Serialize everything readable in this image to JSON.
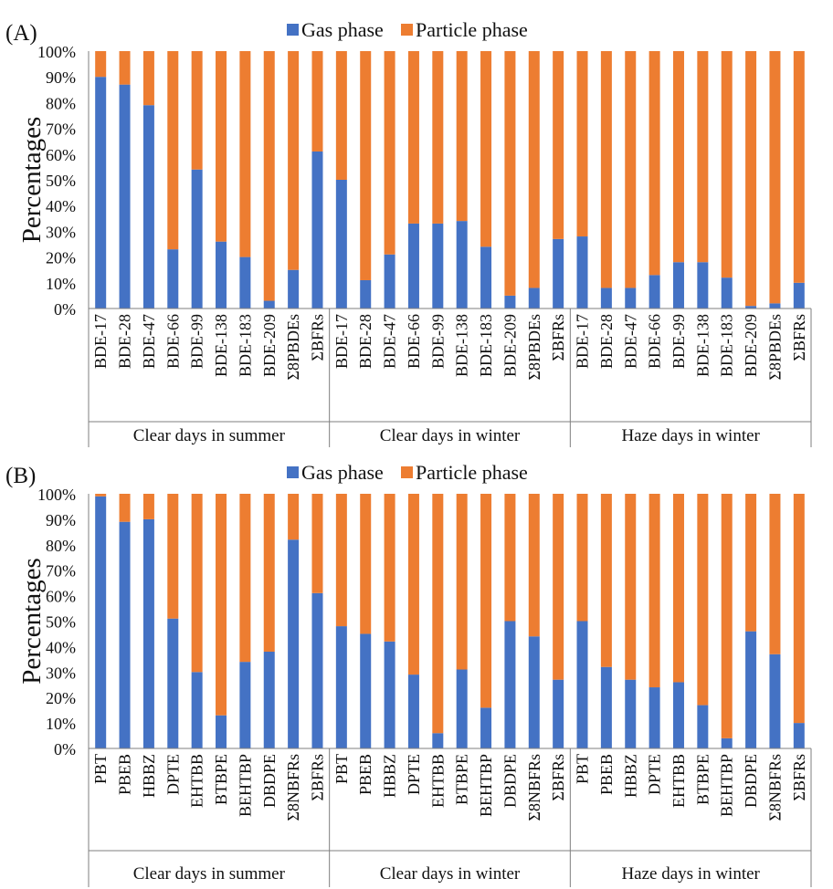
{
  "colors": {
    "gas": "#4472C4",
    "particle": "#ED7D31",
    "axis": "#7f7f7f"
  },
  "chart_data": [
    {
      "type": "bar",
      "stacked": true,
      "panel_label": "(A)",
      "ylabel": "Percentages",
      "ylim": [
        0,
        100
      ],
      "yticks": [
        "0%",
        "10%",
        "20%",
        "30%",
        "40%",
        "50%",
        "60%",
        "70%",
        "80%",
        "90%",
        "100%"
      ],
      "legend": [
        "Gas phase",
        "Particle phase"
      ],
      "legend_position": "top-center",
      "groups": [
        "Clear days in summer",
        "Clear days in winter",
        "Haze days in winter"
      ],
      "categories": [
        "BDE-17",
        "BDE-28",
        "BDE-47",
        "BDE-66",
        "BDE-99",
        "BDE-138",
        "BDE-183",
        "BDE-209",
        "Σ8PBDEs",
        "ΣBFRs",
        "BDE-17",
        "BDE-28",
        "BDE-47",
        "BDE-66",
        "BDE-99",
        "BDE-138",
        "BDE-183",
        "BDE-209",
        "Σ8PBDEs",
        "ΣBFRs",
        "BDE-17",
        "BDE-28",
        "BDE-47",
        "BDE-66",
        "BDE-99",
        "BDE-138",
        "BDE-183",
        "BDE-209",
        "Σ8PBDEs",
        "ΣBFRs"
      ],
      "series": [
        {
          "name": "Gas phase",
          "values": [
            90,
            87,
            79,
            23,
            54,
            26,
            20,
            3,
            15,
            61,
            50,
            11,
            21,
            33,
            33,
            34,
            24,
            5,
            8,
            27,
            28,
            8,
            8,
            13,
            18,
            18,
            12,
            1,
            2,
            10
          ]
        },
        {
          "name": "Particle phase",
          "values": [
            10,
            13,
            21,
            77,
            46,
            74,
            80,
            97,
            85,
            39,
            50,
            89,
            79,
            67,
            67,
            66,
            76,
            95,
            92,
            73,
            72,
            92,
            92,
            87,
            82,
            82,
            88,
            99,
            98,
            90
          ]
        }
      ]
    },
    {
      "type": "bar",
      "stacked": true,
      "panel_label": "(B)",
      "ylabel": "Percentages",
      "ylim": [
        0,
        100
      ],
      "yticks": [
        "0%",
        "10%",
        "20%",
        "30%",
        "40%",
        "50%",
        "60%",
        "70%",
        "80%",
        "90%",
        "100%"
      ],
      "legend": [
        "Gas phase",
        "Particle phase"
      ],
      "legend_position": "top-center",
      "groups": [
        "Clear days in summer",
        "Clear days in winter",
        "Haze days in winter"
      ],
      "categories": [
        "PBT",
        "PBEB",
        "HBBZ",
        "DPTE",
        "EHTBB",
        "BTBPE",
        "BEHTBP",
        "DBDPE",
        "Σ8NBFRs",
        "ΣBFRs",
        "PBT",
        "PBEB",
        "HBBZ",
        "DPTE",
        "EHTBB",
        "BTBPE",
        "BEHTBP",
        "DBDPE",
        "Σ8NBFRs",
        "ΣBFRs",
        "PBT",
        "PBEB",
        "HBBZ",
        "DPTE",
        "EHTBB",
        "BTBPE",
        "BEHTBP",
        "DBDPE",
        "Σ8NBFRs",
        "ΣBFRs"
      ],
      "series": [
        {
          "name": "Gas phase",
          "values": [
            99,
            89,
            90,
            51,
            30,
            13,
            34,
            38,
            82,
            61,
            48,
            45,
            42,
            29,
            6,
            31,
            16,
            50,
            44,
            27,
            50,
            32,
            27,
            24,
            26,
            17,
            4,
            46,
            37,
            10
          ]
        },
        {
          "name": "Particle phase",
          "values": [
            1,
            11,
            10,
            49,
            70,
            87,
            66,
            62,
            18,
            39,
            52,
            55,
            58,
            71,
            94,
            69,
            84,
            50,
            56,
            73,
            50,
            68,
            73,
            76,
            74,
            83,
            96,
            54,
            63,
            90
          ]
        }
      ]
    }
  ]
}
